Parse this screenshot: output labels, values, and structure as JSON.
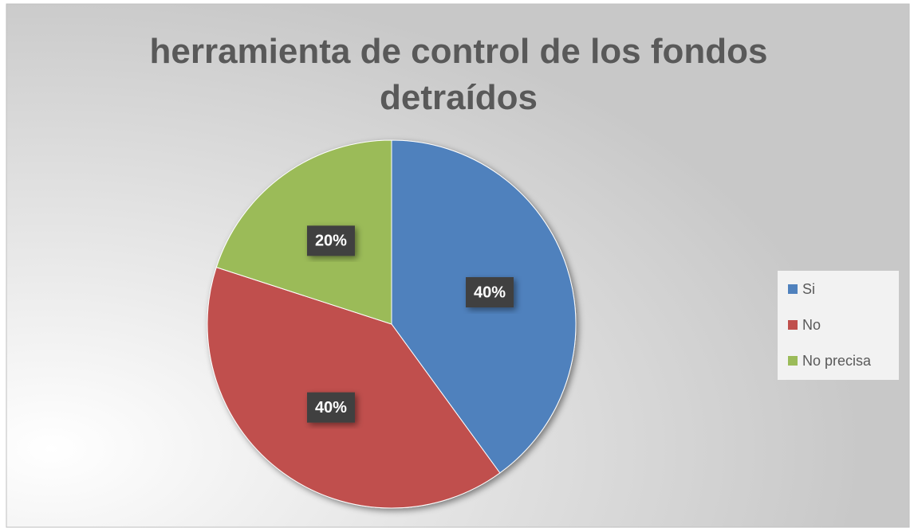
{
  "chart_data": {
    "type": "pie",
    "title": "herramienta de control de los fondos detraídos",
    "categories": [
      "Si",
      "No",
      "No precisa"
    ],
    "values": [
      40,
      40,
      20
    ],
    "value_labels": [
      "40%",
      "40%",
      "20%"
    ],
    "colors": [
      "#4f81bd",
      "#c0504d",
      "#9bbb59"
    ],
    "legend": "right"
  }
}
